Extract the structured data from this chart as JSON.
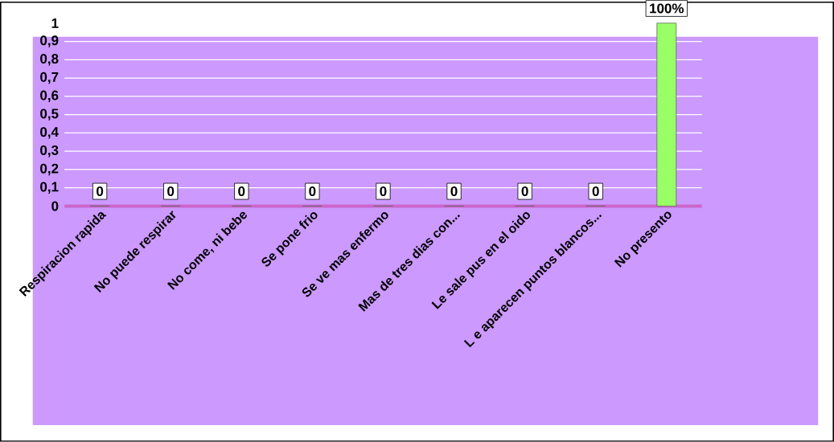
{
  "chart_data": {
    "type": "bar",
    "categories": [
      "Respiracion rapida",
      "No puede respirar",
      "No come, ni bebe",
      "Se pone frio",
      "Se ve mas enfermo",
      "Mas de tres dias con...",
      "Le sale pus en el oido",
      "L e aparecen puntos blancos...",
      "No presento"
    ],
    "values": [
      0,
      0,
      0,
      0,
      0,
      0,
      0,
      0,
      1
    ],
    "colors": [
      "#cccc00",
      "#cccc00",
      "#cccc00",
      "#cccc00",
      "#cccc00",
      "#cccc00",
      "#cccc00",
      "#cccc00",
      "#99ff66"
    ],
    "value_labels": [
      "0",
      "0",
      "0",
      "0",
      "0",
      "0",
      "0",
      "0",
      "100%"
    ],
    "ylim": [
      0,
      1
    ],
    "yticks": [
      0,
      {
        "value": 0.1,
        "label": "0,1"
      },
      {
        "value": 0.2,
        "label": "0,2"
      },
      {
        "value": 0.3,
        "label": "0,3"
      },
      {
        "value": 0.4,
        "label": "0,4"
      },
      {
        "value": 0.5,
        "label": "0,5"
      },
      {
        "value": 0.6,
        "label": "0,6"
      },
      {
        "value": 0.7,
        "label": "0,7"
      },
      {
        "value": 0.8,
        "label": "0,8"
      },
      {
        "value": 0.9,
        "label": "0,9"
      },
      1
    ],
    "grid": "y"
  }
}
